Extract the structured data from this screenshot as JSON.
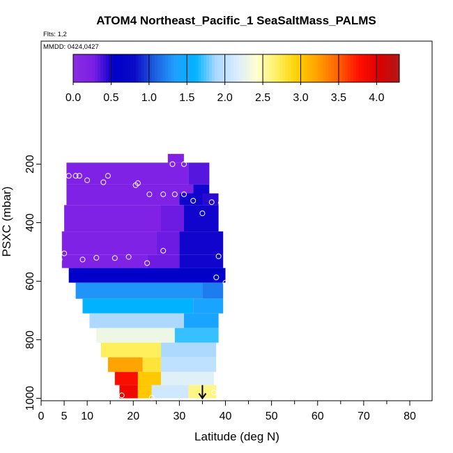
{
  "chart_data": {
    "type": "heatmap",
    "title": "ATOM4 Northeast_Pacific_1 SeaSaltMass_PALMS",
    "flights_label": "Flts: 1,2",
    "dates_label": "MMDD: 0424,0427",
    "xlabel": "Latitude (deg N)",
    "ylabel": "PSXC (mbar)",
    "xlim": [
      0,
      85
    ],
    "ylim": [
      1000,
      100
    ],
    "x_ticks": [
      0,
      5,
      10,
      20,
      30,
      40,
      50,
      60,
      70,
      80
    ],
    "y_ticks": [
      200,
      400,
      600,
      800,
      1000
    ],
    "colorbar": {
      "min": 0,
      "max": 4.3,
      "ticks": [
        0.0,
        0.5,
        1.0,
        1.5,
        2.0,
        2.5,
        3.0,
        3.5,
        4.0
      ],
      "tick_labels": [
        "0.0",
        "0.5",
        "1.0",
        "1.5",
        "2.0",
        "2.5",
        "3.0",
        "3.5",
        "4.0"
      ],
      "colors": [
        "#8a2be2",
        "#7b1fe6",
        "#0000c8",
        "#0a0ac8",
        "#1e5fe0",
        "#1fa0ff",
        "#00b4ff",
        "#aad8ff",
        "#d8ecff",
        "#ffffd0",
        "#fff060",
        "#ffd000",
        "#ffa000",
        "#ff6000",
        "#ff1000",
        "#dd0000",
        "#b01818"
      ]
    },
    "bands": [
      {
        "p_top": 195,
        "p_bot": 270,
        "segments": [
          {
            "lat0": 5.5,
            "lat1": 28.5,
            "value": 0.2
          },
          {
            "lat0": 28.5,
            "lat1": 32,
            "value": 0.2
          },
          {
            "lat0": 32,
            "lat1": 36.5,
            "value": 0.35
          }
        ]
      },
      {
        "p_top": 165,
        "p_bot": 195,
        "segments": [
          {
            "lat0": 27.5,
            "lat1": 31,
            "value": 0.2
          }
        ]
      },
      {
        "p_top": 270,
        "p_bot": 300,
        "segments": [
          {
            "lat0": 5.5,
            "lat1": 33,
            "value": 0.2
          },
          {
            "lat0": 33,
            "lat1": 36.5,
            "value": 0.5
          }
        ]
      },
      {
        "p_top": 300,
        "p_bot": 340,
        "segments": [
          {
            "lat0": 5.5,
            "lat1": 30,
            "value": 0.2
          },
          {
            "lat0": 30,
            "lat1": 35,
            "value": 0.5
          },
          {
            "lat0": 35,
            "lat1": 38.5,
            "value": 0.45
          }
        ]
      },
      {
        "p_top": 340,
        "p_bot": 430,
        "segments": [
          {
            "lat0": 5,
            "lat1": 26,
            "value": 0.2
          },
          {
            "lat0": 26,
            "lat1": 31,
            "value": 0.3
          },
          {
            "lat0": 31,
            "lat1": 38.5,
            "value": 0.5
          }
        ]
      },
      {
        "p_top": 430,
        "p_bot": 510,
        "segments": [
          {
            "lat0": 4.5,
            "lat1": 25,
            "value": 0.2
          },
          {
            "lat0": 25,
            "lat1": 30,
            "value": 0.3
          },
          {
            "lat0": 30,
            "lat1": 39.5,
            "value": 0.5
          }
        ]
      },
      {
        "p_top": 510,
        "p_bot": 555,
        "segments": [
          {
            "lat0": 4.5,
            "lat1": 23,
            "value": 0.2
          },
          {
            "lat0": 23,
            "lat1": 30,
            "value": 0.3
          },
          {
            "lat0": 30,
            "lat1": 39.5,
            "value": 0.5
          }
        ]
      },
      {
        "p_top": 555,
        "p_bot": 605,
        "segments": [
          {
            "lat0": 6,
            "lat1": 40,
            "value": 0.55
          }
        ]
      },
      {
        "p_top": 605,
        "p_bot": 660,
        "segments": [
          {
            "lat0": 7.5,
            "lat1": 35,
            "value": 1.3
          },
          {
            "lat0": 35,
            "lat1": 39.5,
            "value": 1.2
          }
        ]
      },
      {
        "p_top": 660,
        "p_bot": 710,
        "segments": [
          {
            "lat0": 9,
            "lat1": 33,
            "value": 1.6
          },
          {
            "lat0": 33,
            "lat1": 39.5,
            "value": 1.4
          }
        ]
      },
      {
        "p_top": 710,
        "p_bot": 760,
        "segments": [
          {
            "lat0": 10.5,
            "lat1": 31,
            "value": 1.9
          },
          {
            "lat0": 31,
            "lat1": 38.5,
            "value": 1.4
          }
        ]
      },
      {
        "p_top": 760,
        "p_bot": 810,
        "segments": [
          {
            "lat0": 12,
            "lat1": 29,
            "value": 2.3
          },
          {
            "lat0": 29,
            "lat1": 38.5,
            "value": 1.7
          }
        ]
      },
      {
        "p_top": 810,
        "p_bot": 860,
        "segments": [
          {
            "lat0": 13,
            "lat1": 26,
            "value": 2.7
          },
          {
            "lat0": 26,
            "lat1": 38,
            "value": 1.9
          }
        ]
      },
      {
        "p_top": 860,
        "p_bot": 910,
        "segments": [
          {
            "lat0": 14.5,
            "lat1": 22,
            "value": 3.2
          },
          {
            "lat0": 22,
            "lat1": 26,
            "value": 2.8
          },
          {
            "lat0": 26,
            "lat1": 38,
            "value": 2.0
          }
        ]
      },
      {
        "p_top": 910,
        "p_bot": 955,
        "segments": [
          {
            "lat0": 16,
            "lat1": 21,
            "value": 3.8
          },
          {
            "lat0": 21,
            "lat1": 26,
            "value": 3.0
          },
          {
            "lat0": 26,
            "lat1": 37.5,
            "value": 2.2
          }
        ]
      },
      {
        "p_top": 955,
        "p_bot": 1000,
        "segments": [
          {
            "lat0": 17,
            "lat1": 21,
            "value": 3.9
          },
          {
            "lat0": 21,
            "lat1": 24,
            "value": 3.0
          },
          {
            "lat0": 24,
            "lat1": 32,
            "value": 2.1
          },
          {
            "lat0": 32,
            "lat1": 38,
            "value": 2.6
          }
        ]
      }
    ],
    "observations": [
      {
        "lat": 28.5,
        "p": 200
      },
      {
        "lat": 31,
        "p": 200
      },
      {
        "lat": 6,
        "p": 240
      },
      {
        "lat": 7.5,
        "p": 240
      },
      {
        "lat": 8.3,
        "p": 240
      },
      {
        "lat": 14.5,
        "p": 240
      },
      {
        "lat": 10,
        "p": 255
      },
      {
        "lat": 13.5,
        "p": 262
      },
      {
        "lat": 21,
        "p": 265
      },
      {
        "lat": 20.5,
        "p": 272
      },
      {
        "lat": 23.5,
        "p": 303
      },
      {
        "lat": 26.5,
        "p": 303
      },
      {
        "lat": 29,
        "p": 303
      },
      {
        "lat": 31,
        "p": 303
      },
      {
        "lat": 33,
        "p": 325
      },
      {
        "lat": 37,
        "p": 330
      },
      {
        "lat": 39,
        "p": 332
      },
      {
        "lat": 35,
        "p": 368
      },
      {
        "lat": 5,
        "p": 505
      },
      {
        "lat": 26.5,
        "p": 496
      },
      {
        "lat": 38.5,
        "p": 515
      },
      {
        "lat": 4,
        "p": 526
      },
      {
        "lat": 9,
        "p": 526
      },
      {
        "lat": 12,
        "p": 520
      },
      {
        "lat": 16,
        "p": 521
      },
      {
        "lat": 19,
        "p": 517
      },
      {
        "lat": 23,
        "p": 538
      },
      {
        "lat": 38,
        "p": 587
      },
      {
        "lat": 40,
        "p": 605
      },
      {
        "lat": 17.5,
        "p": 990
      },
      {
        "lat": 24,
        "p": 998
      },
      {
        "lat": 37.5,
        "p": 980
      }
    ],
    "marker_lat": 35,
    "marker_p_top": 955,
    "marker_p_bot": 1000
  }
}
